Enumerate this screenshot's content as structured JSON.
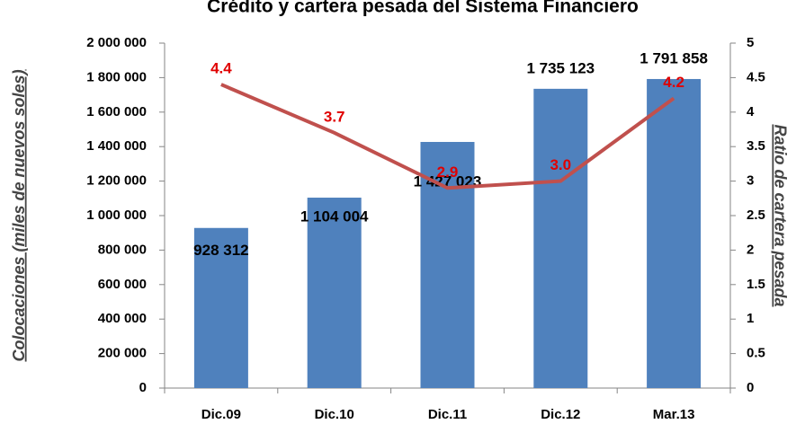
{
  "chart_data": {
    "type": "bar_line",
    "title": "Crédito y cartera pesada del Sistema Financiero",
    "ylabel": "Colocaciones (miles de nuevos soles)",
    "y2label": "Ratio de cartera pesada",
    "categories": [
      "Dic.09",
      "Dic.10",
      "Dic.11",
      "Dic.12",
      "Mar.13"
    ],
    "series": [
      {
        "name": "Colocaciones",
        "type": "bar",
        "color": "#4f81bd",
        "values": [
          928312,
          1104004,
          1427023,
          1735123,
          1791858
        ],
        "value_labels": [
          "928 312",
          "1 104 004",
          "1 427 023",
          "1 735 123",
          "1 791 858"
        ]
      },
      {
        "name": "Ratio de cartera pesada",
        "type": "line",
        "axis": "y2",
        "color": "#c0504d",
        "values": [
          4.4,
          3.7,
          2.9,
          3.0,
          4.2
        ],
        "value_labels": [
          "4.4",
          "3.7",
          "2.9",
          "3.0",
          "4.2"
        ]
      }
    ],
    "ylim": [
      0,
      2000000
    ],
    "yticks": [
      0,
      {
        "value": 200000,
        "label": "200 000"
      },
      {
        "value": 400000,
        "label": "400 000"
      },
      {
        "value": 600000,
        "label": "600 000"
      },
      {
        "value": 800000,
        "label": "800 000"
      },
      {
        "value": 1000000,
        "label": "1 000 000"
      },
      {
        "value": 1200000,
        "label": "1 200 000"
      },
      {
        "value": 1400000,
        "label": "1 400 000"
      },
      {
        "value": 1600000,
        "label": "1 600 000"
      },
      {
        "value": 1800000,
        "label": "1 800 000"
      },
      {
        "value": 2000000,
        "label": "2 000 000"
      }
    ],
    "y2lim": [
      0,
      5
    ],
    "y2ticks": [
      0,
      0.5,
      1,
      1.5,
      2,
      2.5,
      3,
      3.5,
      4,
      4.5,
      5
    ]
  }
}
